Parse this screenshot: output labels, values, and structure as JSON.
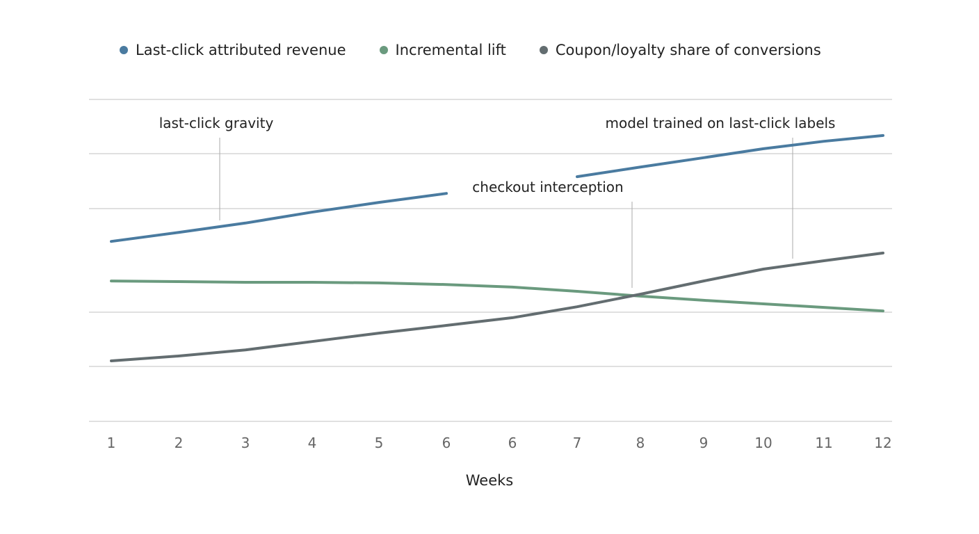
{
  "chart_data": {
    "type": "line",
    "title": "",
    "xlabel": "Weeks",
    "ylabel": "",
    "categories": [
      "1",
      "2",
      "3",
      "4",
      "5",
      "6",
      "6",
      "7",
      "8",
      "9",
      "10",
      "11",
      "12"
    ],
    "ylim": [
      0,
      100
    ],
    "grid": true,
    "legend_position": "top",
    "series": [
      {
        "name": "Last-click attributed revenue",
        "color": "#4a7ba0",
        "values": [
          55.9,
          58.7,
          61.6,
          65.0,
          68.0,
          70.8,
          null,
          76.0,
          79.0,
          81.9,
          84.7,
          87.0,
          88.8
        ]
      },
      {
        "name": "Incremental lift",
        "color": "#6a9a7e",
        "values": [
          43.6,
          43.4,
          43.2,
          43.2,
          43.0,
          42.5,
          41.7,
          40.4,
          38.9,
          37.6,
          36.5,
          35.4,
          34.3
        ]
      },
      {
        "name": "Coupon/loyalty share of conversions",
        "color": "#636d70",
        "values": [
          18.8,
          20.3,
          22.2,
          24.8,
          27.4,
          29.8,
          32.2,
          35.6,
          39.5,
          43.6,
          47.3,
          49.9,
          52.3
        ]
      }
    ],
    "annotations": [
      {
        "text": "last-click gravity"
      },
      {
        "text": "checkout interception"
      },
      {
        "text": "model trained on last-click labels"
      }
    ]
  }
}
